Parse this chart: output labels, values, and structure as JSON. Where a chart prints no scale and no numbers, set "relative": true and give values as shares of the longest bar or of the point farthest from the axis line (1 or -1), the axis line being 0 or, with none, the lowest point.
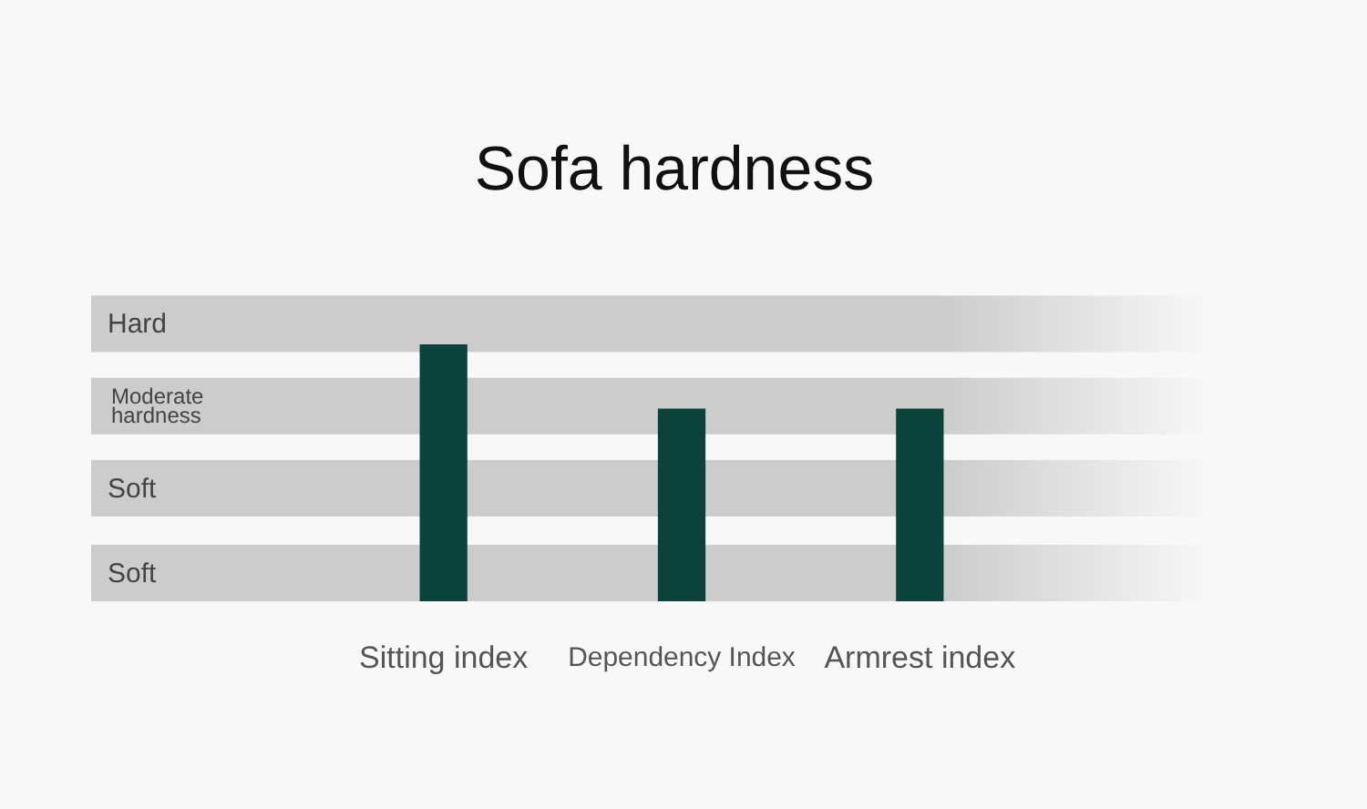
{
  "chart_data": {
    "type": "bar",
    "title": "Sofa hardness",
    "categories": [
      "Sitting index",
      "Dependency Index",
      "Armrest index"
    ],
    "values": [
      1,
      0.75,
      0.75
    ],
    "color": "#0b4239",
    "relative": true,
    "bands": [
      {
        "axis": "y",
        "from": 0.97,
        "to": 1.19,
        "label": "Hard",
        "color": "#cccccc"
      },
      {
        "axis": "y",
        "from": 0.65,
        "to": 0.87,
        "label": "Moderate hardness",
        "color": "#cccccc"
      },
      {
        "axis": "y",
        "from": 0.33,
        "to": 0.55,
        "label": "Soft",
        "color": "#cccccc"
      },
      {
        "axis": "y",
        "from": 0,
        "to": 0.22,
        "label": "Soft",
        "color": "#cccccc"
      }
    ]
  }
}
